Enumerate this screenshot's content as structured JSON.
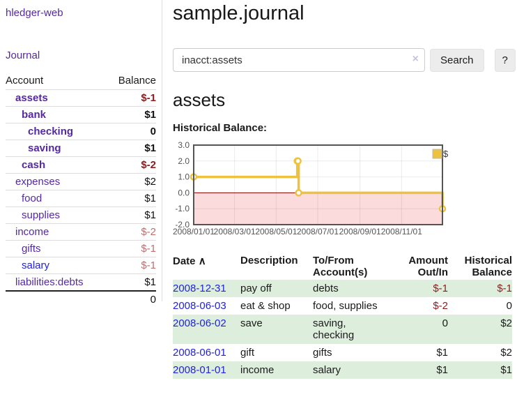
{
  "app": {
    "brand": "hledger-web"
  },
  "sidebar": {
    "journal_link": "Journal",
    "accounts": {
      "header": {
        "account": "Account",
        "balance": "Balance"
      },
      "rows": [
        {
          "name": "assets",
          "balance": "$-1"
        },
        {
          "name": "bank",
          "balance": "$1"
        },
        {
          "name": "checking",
          "balance": "0"
        },
        {
          "name": "saving",
          "balance": "$1"
        },
        {
          "name": "cash",
          "balance": "$-2"
        },
        {
          "name": "expenses",
          "balance": "$2"
        },
        {
          "name": "food",
          "balance": "$1"
        },
        {
          "name": "supplies",
          "balance": "$1"
        },
        {
          "name": "income",
          "balance": "$-2"
        },
        {
          "name": "gifts",
          "balance": "$-1"
        },
        {
          "name": "salary",
          "balance": "$-1"
        },
        {
          "name": "liabilities:debts",
          "balance": "$1"
        }
      ],
      "total": "0"
    }
  },
  "header": {
    "title": "sample.journal"
  },
  "search": {
    "value": "inacct:assets",
    "clear_icon": "×",
    "button_label": "Search",
    "help_label": "?"
  },
  "account_page": {
    "heading": "assets",
    "chart_title": "Historical Balance:"
  },
  "register": {
    "headers": {
      "date": "Date",
      "sort_icon": "∧",
      "description": "Description",
      "account": "To/From\nAccount(s)",
      "amount": "Amount\nOut/In",
      "balance": "Historical\nBalance"
    },
    "rows": [
      {
        "date": "2008-12-31",
        "description": "pay off",
        "accounts": "debts",
        "amount": "$-1",
        "balance": "$-1"
      },
      {
        "date": "2008-06-03",
        "description": "eat & shop",
        "accounts": "food, supplies",
        "amount": "$-2",
        "balance": "0"
      },
      {
        "date": "2008-06-02",
        "description": "save",
        "accounts": "saving,\nchecking",
        "amount": "0",
        "balance": "$2"
      },
      {
        "date": "2008-06-01",
        "description": "gift",
        "accounts": "gifts",
        "amount": "$1",
        "balance": "$2"
      },
      {
        "date": "2008-01-01",
        "description": "income",
        "accounts": "salary",
        "amount": "$1",
        "balance": "$1"
      }
    ]
  },
  "chart_data": {
    "type": "line",
    "step": true,
    "title": "Historical Balance",
    "legend": "$",
    "legend_position": "top-right",
    "grid": true,
    "xlim": [
      "2008-01-01",
      "2008-12-31"
    ],
    "ylim": [
      -2,
      3
    ],
    "x_tick_labels": [
      "2008/01/01",
      "2008/03/01",
      "2008/05/01",
      "2008/07/01",
      "2008/09/01",
      "2008/11/01"
    ],
    "y_tick_labels": [
      "3.0",
      "2.0",
      "1.0",
      "0.0",
      "-1.0",
      "-2.0"
    ],
    "series": [
      {
        "name": "$",
        "color": "#EDC240",
        "points": [
          [
            "2008-01-01",
            1
          ],
          [
            "2008-06-01",
            2
          ],
          [
            "2008-06-02",
            2
          ],
          [
            "2008-06-03",
            0
          ],
          [
            "2008-12-31",
            -1
          ]
        ]
      }
    ],
    "zero_line_color": "#8b0000",
    "negative_region_color": "#fbdbdb"
  },
  "colors": {
    "link_purple": "#5429a3",
    "link_blue": "#2222e0",
    "negative_strong": "#8f1c1c",
    "negative_soft": "#bd7070",
    "row_stripe_green": "#ddeedd",
    "chart_line": "#EDC240",
    "chart_border": "#545454",
    "chart_negative_fill": "#fbdbdb",
    "chart_zero_line": "#8b0000"
  }
}
